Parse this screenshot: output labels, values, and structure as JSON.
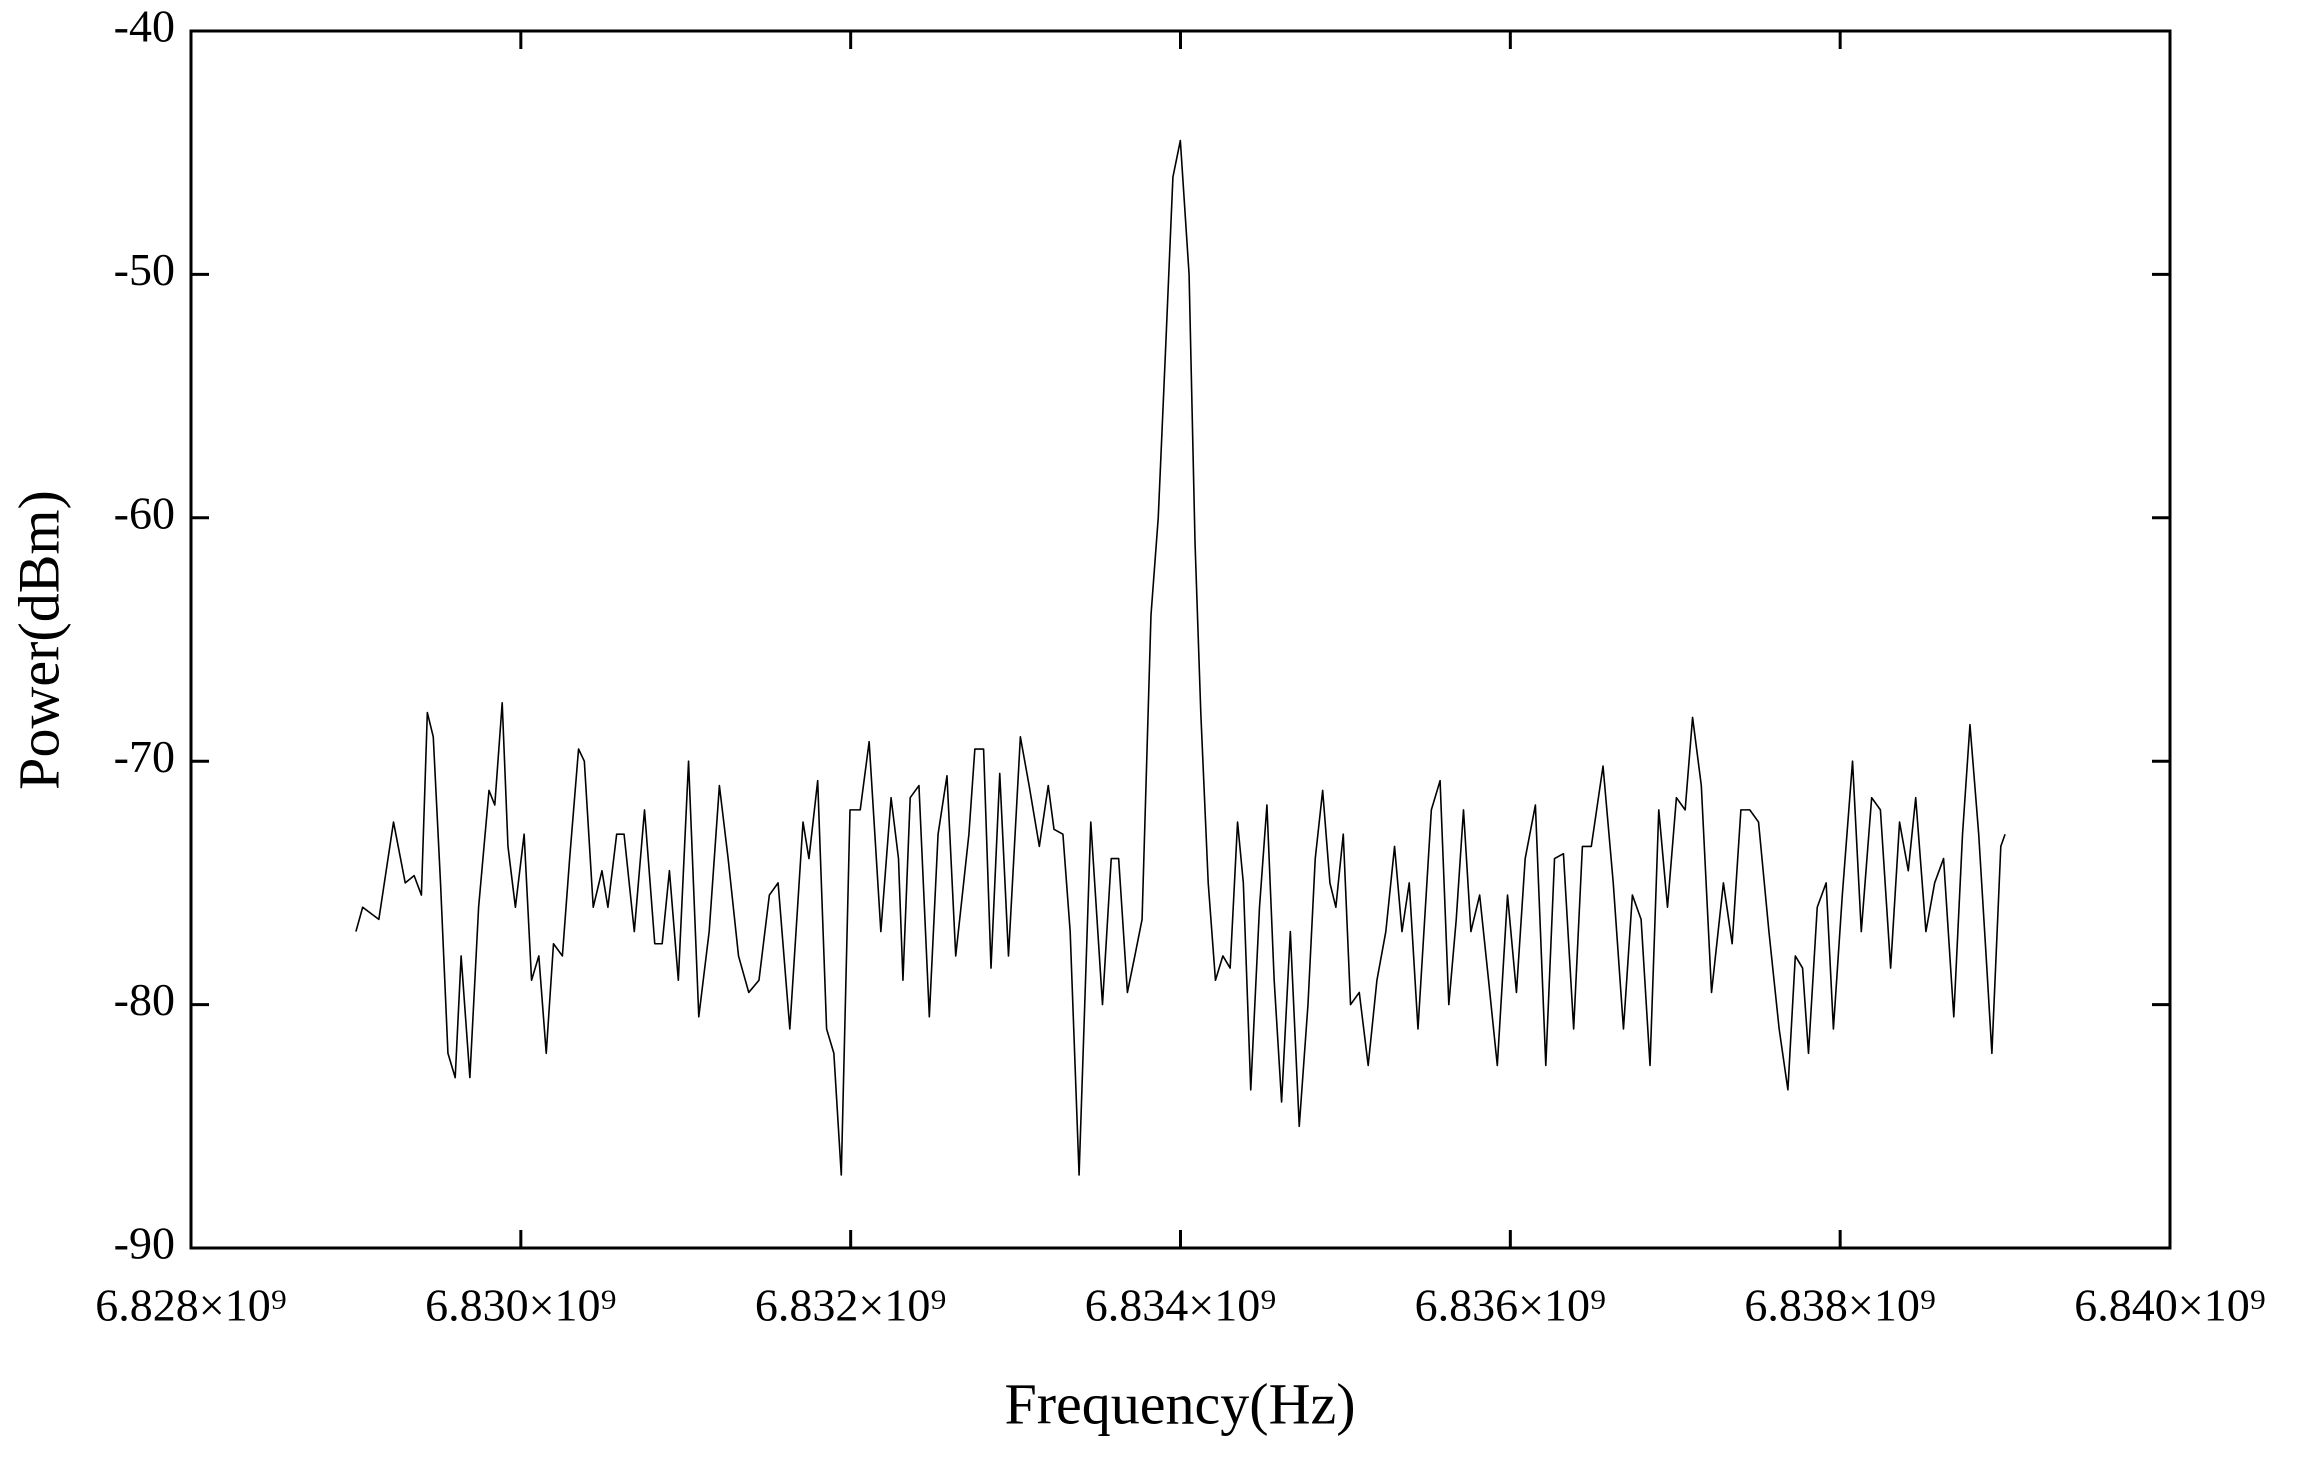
{
  "chart_data": {
    "type": "line",
    "x_label": "Frequency(Hz)",
    "y_label": "Power(dBm)",
    "xlim": [
      6828000000,
      6840000000
    ],
    "xticks": [
      {
        "value": 6828000000,
        "label": "6.828×10⁹"
      },
      {
        "value": 6830000000,
        "label": "6.830×10⁹"
      },
      {
        "value": 6832000000,
        "label": "6.832×10⁹"
      },
      {
        "value": 6834000000,
        "label": "6.834×10⁹"
      },
      {
        "value": 6836000000,
        "label": "6.836×10⁹"
      },
      {
        "value": 6838000000,
        "label": "6.838×10⁹"
      },
      {
        "value": 6840000000,
        "label": "6.840×10⁹"
      }
    ],
    "ylim": [
      -90,
      -40
    ],
    "yticks": [
      -90,
      -80,
      -70,
      -60,
      -50,
      -40
    ],
    "color": "#000000",
    "x": [
      6829000000,
      6829041000,
      6829139000,
      6829228000,
      6829299000,
      6829353000,
      6829397000,
      6829433000,
      6829469000,
      6829513000,
      6829558000,
      6829602000,
      6829638000,
      6829691000,
      6829744000,
      6829807000,
      6829842000,
      6829887000,
      6829922000,
      6829967000,
      6830020000,
      6830065000,
      6830109000,
      6830154000,
      6830198000,
      6830252000,
      6830296000,
      6830350000,
      6830385000,
      6830439000,
      6830492000,
      6830528000,
      6830581000,
      6830626000,
      6830688000,
      6830750000,
      6830812000,
      6830857000,
      6830901000,
      6830955000,
      6831017000,
      6831079000,
      6831142000,
      6831204000,
      6831257000,
      6831320000,
      6831382000,
      6831444000,
      6831507000,
      6831560000,
      6831631000,
      6831711000,
      6831747000,
      6831800000,
      6831854000,
      6831898000,
      6831943000,
      6831996000,
      6832058000,
      6832112000,
      6832183000,
      6832245000,
      6832290000,
      6832317000,
      6832361000,
      6832414000,
      6832477000,
      6832530000,
      6832584000,
      6832637000,
      6832717000,
      6832753000,
      6832806000,
      6832851000,
      6832904000,
      6832957000,
      6833029000,
      6833082000,
      6833144000,
      6833198000,
      6833233000,
      6833287000,
      6833331000,
      6833385000,
      6833456000,
      6833527000,
      6833580000,
      6833625000,
      6833678000,
      6833723000,
      6833767000,
      6833821000,
      6833865000,
      6833910000,
      6833954000,
      6833999000,
      6834052000,
      6834088000,
      6834123000,
      6834168000,
      6834212000,
      6834257000,
      6834301000,
      6834346000,
      6834381000,
      6834426000,
      6834479000,
      6834524000,
      6834568000,
      6834613000,
      6834666000,
      6834720000,
      6834773000,
      6834817000,
      6834862000,
      6834906000,
      6834942000,
      6834987000,
      6835031000,
      6835084000,
      6835138000,
      6835191000,
      6835245000,
      6835298000,
      6835343000,
      6835387000,
      6835440000,
      6835521000,
      6835574000,
      6835627000,
      6835672000,
      6835716000,
      6835761000,
      6835814000,
      6835868000,
      6835921000,
      6835983000,
      6836037000,
      6836090000,
      6836152000,
      6836215000,
      6836268000,
      6836322000,
      6836384000,
      6836437000,
      6836491000,
      6836562000,
      6836624000,
      6836686000,
      6836740000,
      6836793000,
      6836847000,
      6836900000,
      6836953000,
      6837007000,
      6837060000,
      6837105000,
      6837158000,
      6837220000,
      6837292000,
      6837345000,
      6837398000,
      6837452000,
      6837505000,
      6837568000,
      6837630000,
      6837683000,
      6837728000,
      6837772000,
      6837808000,
      6837861000,
      6837915000,
      6837959000,
      6838013000,
      6838075000,
      6838128000,
      6838191000,
      6838244000,
      6838306000,
      6838360000,
      6838413000,
      6838458000,
      6838520000,
      6838573000,
      6838627000,
      6838689000,
      6838742000,
      6838787000,
      6838840000,
      6838885000,
      6838920000,
      6838974000,
      6839000000
    ],
    "values": [
      -77,
      -76,
      -76.5,
      -72.5,
      -75,
      -74.7,
      -75.5,
      -68,
      -69,
      -75,
      -82,
      -83,
      -78,
      -83,
      -76,
      -71.2,
      -71.8,
      -67.6,
      -73.5,
      -76,
      -73,
      -79,
      -78,
      -82,
      -77.5,
      -78,
      -74,
      -69.5,
      -70,
      -76,
      -74.5,
      -76,
      -73,
      -73,
      -77,
      -72,
      -77.5,
      -77.5,
      -74.5,
      -79,
      -70,
      -80.5,
      -77,
      -71,
      -74,
      -78,
      -79.5,
      -79,
      -75.5,
      -75,
      -81,
      -72.5,
      -74,
      -70.8,
      -81,
      -82,
      -87,
      -72,
      -72,
      -69.2,
      -77,
      -71.5,
      -74,
      -79,
      -71.5,
      -71,
      -80.5,
      -73,
      -70.6,
      -78,
      -73,
      -69.5,
      -69.5,
      -78.5,
      -70.5,
      -78,
      -69,
      -71,
      -73.5,
      -71,
      -72.8,
      -73,
      -77,
      -87,
      -72.5,
      -80,
      -74,
      -74,
      -79.5,
      -78,
      -76.5,
      -64,
      -60,
      -53,
      -46,
      -44.5,
      -50,
      -61,
      -68,
      -75,
      -79,
      -78,
      -78.5,
      -72.5,
      -75,
      -83.5,
      -76,
      -71.8,
      -79,
      -84,
      -77,
      -85,
      -80,
      -74,
      -71.2,
      -75,
      -76,
      -73,
      -80,
      -79.5,
      -82.5,
      -79,
      -77,
      -73.5,
      -77,
      -75,
      -81,
      -72,
      -70.8,
      -80,
      -76.5,
      -72,
      -77,
      -75.5,
      -79,
      -82.5,
      -75.5,
      -79.5,
      -74,
      -71.8,
      -82.5,
      -74,
      -73.8,
      -81,
      -73.5,
      -73.5,
      -70.2,
      -75,
      -81,
      -75.5,
      -76.5,
      -82.5,
      -72,
      -76,
      -71.5,
      -72,
      -68.2,
      -71,
      -79.5,
      -75,
      -77.5,
      -72,
      -72,
      -72.5,
      -77,
      -81,
      -83.5,
      -78,
      -78.5,
      -82,
      -76,
      -75,
      -81,
      -75.5,
      -70,
      -77,
      -71.5,
      -72,
      -78.5,
      -72.5,
      -74.5,
      -71.5,
      -77,
      -75,
      -74,
      -80.5,
      -73,
      -68.5,
      -73,
      -78,
      -82,
      -73.5,
      -73
    ]
  }
}
